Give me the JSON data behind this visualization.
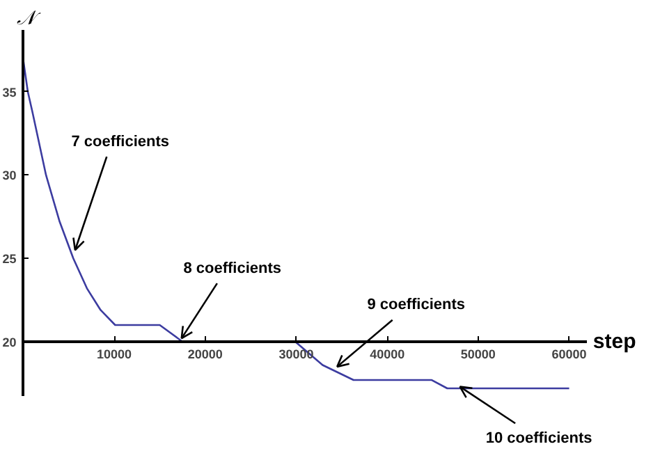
{
  "chart_data": {
    "type": "line",
    "xlabel": "step",
    "ylabel": "𝒩",
    "xlim": [
      0,
      62000
    ],
    "ylim": [
      16.7,
      38.7
    ],
    "xticks": [
      10000,
      20000,
      30000,
      40000,
      50000,
      60000
    ],
    "yticks": [
      20,
      25,
      30,
      35
    ],
    "grid": false,
    "marker": "none",
    "line_style": "solid",
    "series": [
      {
        "color": "#3c3ca0",
        "x": [
          0,
          500,
          1000,
          2500,
          4000,
          5500,
          7000,
          8500,
          10100,
          15000,
          17500,
          29900,
          32900,
          36300,
          44900,
          46600,
          60000
        ],
        "values": [
          36.9,
          35,
          33.8,
          30,
          27.2,
          25,
          23.2,
          21.9,
          21,
          21,
          20,
          20,
          18.6,
          17.7,
          17.7,
          17.2,
          17.2
        ]
      }
    ],
    "annotations": [
      {
        "text": "7 coefficients",
        "x": 5700,
        "y": 25.5
      },
      {
        "text": "8 coefficients",
        "x": 17400,
        "y": 20.2
      },
      {
        "text": "9 coefficients",
        "x": 34500,
        "y": 18.5
      },
      {
        "text": "10 coefficients",
        "x": 48000,
        "y": 17.3
      }
    ]
  }
}
